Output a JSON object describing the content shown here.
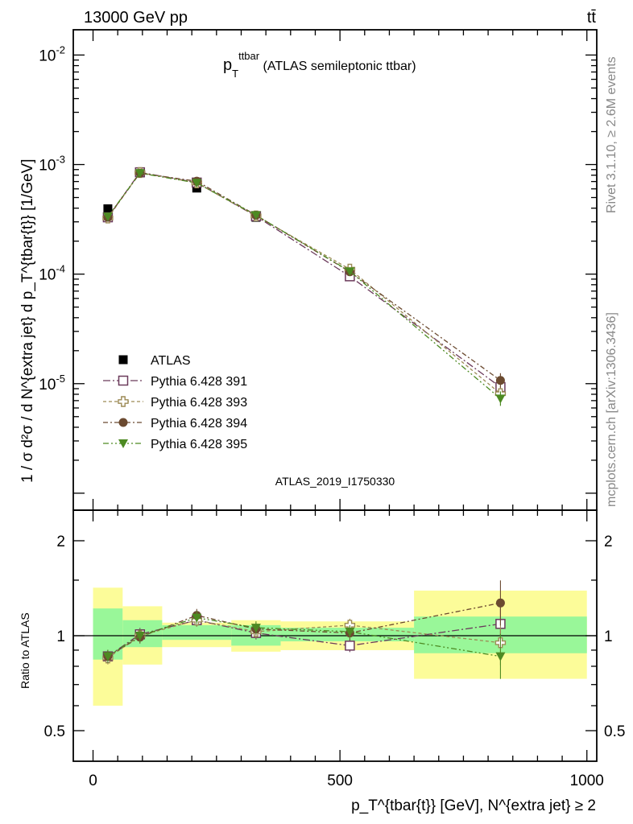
{
  "header": {
    "left": "13000 GeV pp",
    "right": "tt̄"
  },
  "side_labels": {
    "rivet": "Rivet 3.1.10, ≥ 2.6M events",
    "mcplots": "mcplots.cern.ch [arXiv:1306.3436]"
  },
  "analysis_id": "ATLAS_2019_I1750330",
  "chart_data": [
    {
      "type": "scatter",
      "title": "p_T^ttbar (ATLAS semileptonic ttbar)",
      "title_parts": {
        "main": "p",
        "sub": "T",
        "sup": "ttbar",
        "rest": " (ATLAS semileptonic ttbar)"
      },
      "ylabel": "1 / σ d²σ / d N^{extra jet} d p_T^{tbar{t}} [1/GeV]",
      "xlabel": "p_T^{tbar{t}} [GeV], N^{extra jet} ≥ 2",
      "xlim": [
        -40,
        1020
      ],
      "ylim": [
        7e-07,
        0.017
      ],
      "y_scale": "log",
      "y_tick_labels": [
        "10^-5",
        "10^-4",
        "10^-3",
        "10^-2"
      ],
      "x_tick_labels": [
        "0",
        "500",
        "1000"
      ],
      "legend_position": "lower-left",
      "x": [
        30,
        95,
        210,
        330,
        520,
        825
      ],
      "series": [
        {
          "name": "ATLAS",
          "marker": "filled-square",
          "color": "#000000",
          "values": [
            0.000395,
            0.00084,
            0.00061,
            0.00033,
            0.0001025,
            8.5e-06
          ]
        },
        {
          "name": "Pythia 6.428 391",
          "marker": "open-square",
          "color": "#6b3a5b",
          "values": [
            0.00033,
            0.00085,
            0.000685,
            0.000338,
            9.55e-05,
            9.3e-06
          ]
        },
        {
          "name": "Pythia 6.428 393",
          "marker": "open-cross",
          "color": "#9c8a55",
          "values": [
            0.000325,
            0.000845,
            0.00068,
            0.00034,
            0.000111,
            8.1e-06
          ]
        },
        {
          "name": "Pythia 6.428 394",
          "marker": "filled-circle",
          "color": "#6b4a30",
          "values": [
            0.00033,
            0.000835,
            0.000705,
            0.000345,
            0.000105,
            1.07e-05
          ]
        },
        {
          "name": "Pythia 6.428 395",
          "marker": "filled-triangle-down",
          "color": "#4d8a22",
          "values": [
            0.000335,
            0.000835,
            0.00068,
            0.000345,
            0.000106,
            7.3e-06
          ]
        }
      ]
    },
    {
      "type": "scatter",
      "ylabel": "Ratio to ATLAS",
      "y_scale": "log",
      "ylim": [
        0.4,
        2.5
      ],
      "y_tick_labels": [
        "0.5",
        "1",
        "2"
      ],
      "x_tick_labels": [
        "0",
        "500",
        "1000"
      ],
      "x": [
        30,
        95,
        210,
        330,
        520,
        825
      ],
      "uncertainty_bands": {
        "bin_edges": [
          0,
          60,
          140,
          280,
          380,
          650,
          1000
        ],
        "stat_lo": [
          0.84,
          0.92,
          0.97,
          0.93,
          0.96,
          0.88
        ],
        "stat_hi": [
          1.22,
          1.12,
          1.08,
          1.08,
          1.06,
          1.15
        ],
        "total_lo": [
          0.6,
          0.81,
          0.92,
          0.89,
          0.9,
          0.73
        ],
        "total_hi": [
          1.42,
          1.24,
          1.1,
          1.12,
          1.11,
          1.39
        ],
        "stat_color": "#99f799",
        "total_color": "#fcfc99"
      },
      "series": [
        {
          "name": "Pythia 6.428 391",
          "values": [
            0.86,
            1.01,
            1.12,
            1.02,
            0.93,
            1.09
          ]
        },
        {
          "name": "Pythia 6.428 393",
          "values": [
            0.85,
            1.0,
            1.12,
            1.03,
            1.08,
            0.95
          ]
        },
        {
          "name": "Pythia 6.428 394",
          "values": [
            0.86,
            0.99,
            1.16,
            1.05,
            1.02,
            1.27
          ]
        },
        {
          "name": "Pythia 6.428 395",
          "values": [
            0.86,
            1.0,
            1.14,
            1.06,
            1.03,
            0.86
          ]
        }
      ]
    }
  ]
}
